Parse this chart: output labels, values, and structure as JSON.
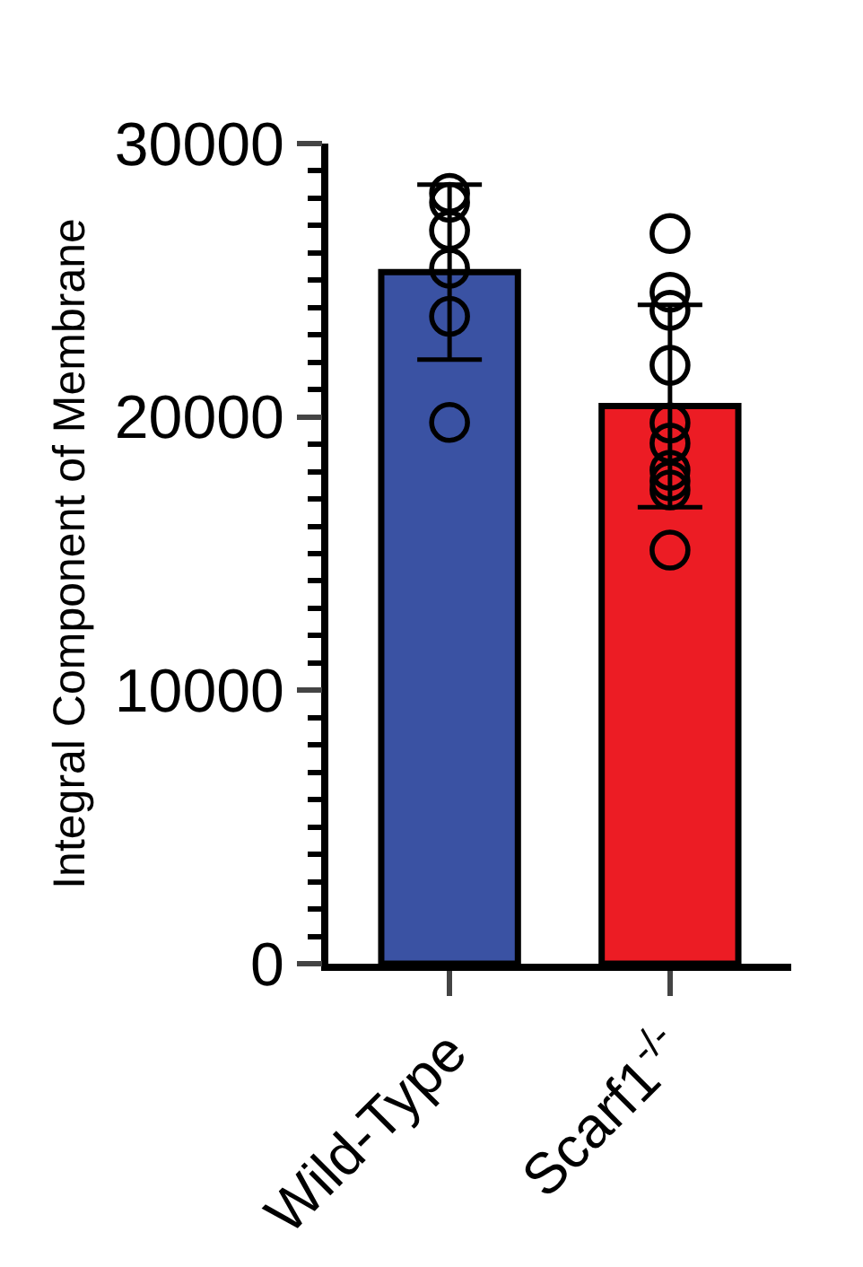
{
  "chart_data": {
    "type": "bar",
    "ylabel": "Integral Component of Membrane",
    "categories": [
      "Wild-Type",
      "Scarf1$^{-/-}$"
    ],
    "values": [
      25300,
      20400
    ],
    "colors": [
      "#3a52a3",
      "#ec1c24"
    ],
    "errors": [
      3200,
      3700
    ],
    "series": [
      {
        "type": "scatter",
        "x": [
          "Wild-Type",
          "Wild-Type",
          "Wild-Type",
          "Wild-Type",
          "Wild-Type",
          "Wild-Type"
        ],
        "values": [
          27850,
          28180,
          26820,
          25440,
          23680,
          19800
        ],
        "marker": "circle"
      },
      {
        "type": "scatter",
        "x": [
          "Scarf1$^{-/-}$",
          "Scarf1$^{-/-}$",
          "Scarf1$^{-/-}$",
          "Scarf1$^{-/-}$",
          "Scarf1$^{-/-}$",
          "Scarf1$^{-/-}$",
          "Scarf1$^{-/-}$",
          "Scarf1$^{-/-}$",
          "Scarf1$^{-/-}$",
          "Scarf1$^{-/-}$"
        ],
        "values": [
          26710,
          24560,
          23900,
          21890,
          19780,
          19040,
          18050,
          17660,
          17330,
          15130
        ],
        "marker": "circle"
      }
    ],
    "ylim": [
      0,
      30000
    ],
    "yticks": [
      0,
      {
        "value": 1000,
        "label": null
      },
      {
        "value": 2000,
        "label": null
      },
      {
        "value": 3000,
        "label": null
      },
      {
        "value": 4000,
        "label": null
      },
      {
        "value": 5000,
        "label": null
      },
      {
        "value": 6000,
        "label": null
      },
      {
        "value": 7000,
        "label": null
      },
      {
        "value": 8000,
        "label": null
      },
      {
        "value": 9000,
        "label": null
      },
      10000,
      {
        "value": 11000,
        "label": null
      },
      {
        "value": 12000,
        "label": null
      },
      {
        "value": 13000,
        "label": null
      },
      {
        "value": 14000,
        "label": null
      },
      {
        "value": 15000,
        "label": null
      },
      {
        "value": 16000,
        "label": null
      },
      {
        "value": 17000,
        "label": null
      },
      {
        "value": 18000,
        "label": null
      },
      {
        "value": 19000,
        "label": null
      },
      20000,
      {
        "value": 21000,
        "label": null
      },
      {
        "value": 22000,
        "label": null
      },
      {
        "value": 23000,
        "label": null
      },
      {
        "value": 24000,
        "label": null
      },
      {
        "value": 25000,
        "label": null
      },
      {
        "value": 26000,
        "label": null
      },
      {
        "value": 27000,
        "label": null
      },
      {
        "value": 28000,
        "label": null
      },
      {
        "value": 29000,
        "label": null
      },
      30000
    ],
    "grid": false
  }
}
